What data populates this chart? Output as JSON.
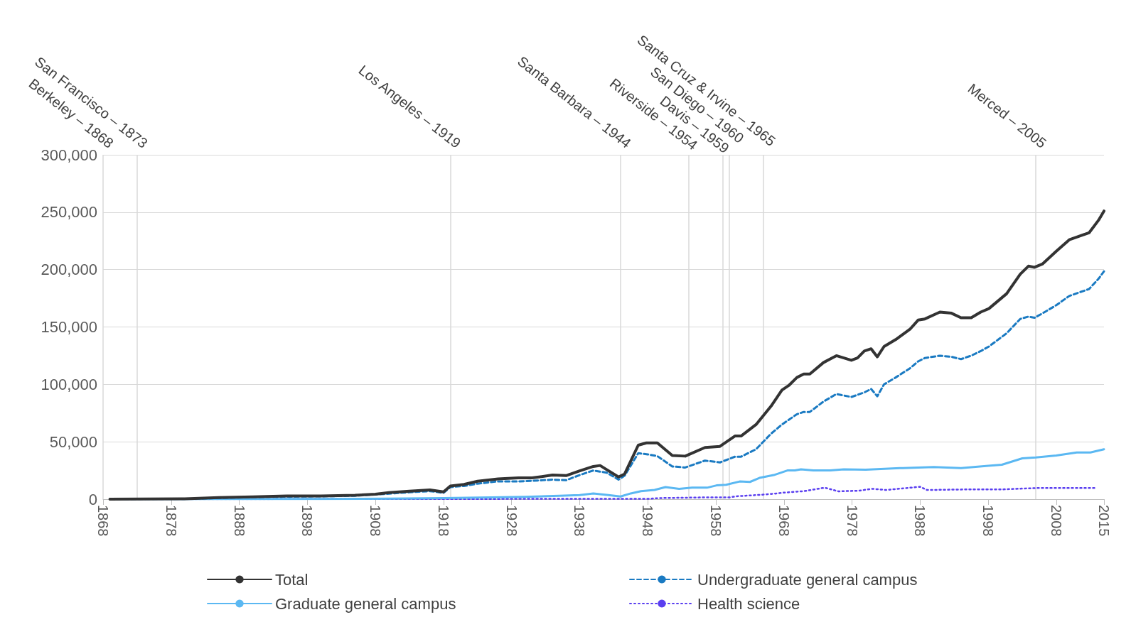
{
  "chart_data": {
    "type": "line",
    "xlim": [
      1868,
      2015
    ],
    "xticks": [
      1868,
      1878,
      1888,
      1898,
      1908,
      1918,
      1928,
      1938,
      1948,
      1958,
      1968,
      1978,
      1988,
      1998,
      2008,
      2015
    ],
    "ylim": [
      0,
      300000
    ],
    "yticks": [
      {
        "value": 0,
        "label": "0"
      },
      {
        "value": 50000,
        "label": "50,000"
      },
      {
        "value": 100000,
        "label": "100,000"
      },
      {
        "value": 150000,
        "label": "150,000"
      },
      {
        "value": 200000,
        "label": "200,000"
      },
      {
        "value": 250000,
        "label": "250,000"
      },
      {
        "value": 300000,
        "label": "300,000"
      }
    ],
    "grid": "y",
    "legend": "bottom",
    "marker": "none",
    "ref_lines": [
      {
        "axis": "x",
        "value": 1868,
        "label": "Berkeley – 1868",
        "color": "#d9d9d9"
      },
      {
        "axis": "x",
        "value": 1873,
        "label": "San Francisco – 1873",
        "color": "#d9d9d9"
      },
      {
        "axis": "x",
        "value": 1919,
        "label": "Los Angeles – 1919",
        "color": "#d9d9d9"
      },
      {
        "axis": "x",
        "value": 1944,
        "label": "Santa Barbara – 1944",
        "color": "#d9d9d9"
      },
      {
        "axis": "x",
        "value": 1954,
        "label": "Riverside – 1954",
        "color": "#d9d9d9"
      },
      {
        "axis": "x",
        "value": 1959,
        "label": "Davis – 1959",
        "color": "#d9d9d9"
      },
      {
        "axis": "x",
        "value": 1960,
        "label": "San Diego – 1960",
        "color": "#d9d9d9"
      },
      {
        "axis": "x",
        "value": 1965,
        "label": "Santa Cruz & Irvine – 1965",
        "color": "#d9d9d9"
      },
      {
        "axis": "x",
        "value": 2005,
        "label": "Merced – 2005",
        "color": "#d9d9d9"
      }
    ],
    "series": [
      {
        "name": "Total",
        "color": "#333333",
        "line_style": "solid",
        "x": [
          1869,
          1880,
          1885,
          1890,
          1895,
          1900,
          1905,
          1908,
          1910,
          1913,
          1916,
          1918,
          1919,
          1921,
          1923,
          1926,
          1929,
          1931,
          1934,
          1936,
          1938,
          1940,
          1941,
          1942,
          1943.7,
          1944.6,
          1946.6,
          1947.8,
          1949.4,
          1951.6,
          1953.5,
          1956.4,
          1958.6,
          1960.8,
          1961.7,
          1963.9,
          1966.1,
          1967.7,
          1968.7,
          1969.9,
          1970.9,
          1971.8,
          1973.8,
          1975.7,
          1977.9,
          1978.8,
          1979.8,
          1980.8,
          1981.7,
          1982.7,
          1984.4,
          1986.5,
          1987.7,
          1988.7,
          1990.9,
          1992.6,
          1994,
          1995.5,
          1996.9,
          1998.1,
          2000.7,
          2002.7,
          2003.9,
          2004.8,
          2006,
          2008,
          2009.9,
          2011.3,
          2012.8,
          2014.2,
          2015
        ],
        "values": [
          0,
          300,
          1400,
          2000,
          2800,
          2800,
          3400,
          4300,
          5700,
          7000,
          8000,
          6300,
          11400,
          12800,
          15600,
          17600,
          18500,
          18500,
          21000,
          20500,
          24700,
          28500,
          29300,
          25600,
          19300,
          22000,
          47000,
          49000,
          49000,
          38000,
          37500,
          45000,
          46000,
          55000,
          55000,
          65000,
          81000,
          95000,
          99000,
          106000,
          109000,
          109000,
          119000,
          125000,
          121000,
          123000,
          129000,
          131000,
          124000,
          133000,
          139000,
          148000,
          156000,
          157000,
          163000,
          162000,
          158000,
          158000,
          163000,
          166000,
          179000,
          196000,
          203000,
          202000,
          205000,
          216000,
          226000,
          229000,
          232000,
          243000,
          251000
        ]
      },
      {
        "name": "Undergraduate general campus",
        "color": "#1a7ac2",
        "line_style": "dashed",
        "x": [
          1869,
          1880,
          1890,
          1900,
          1905,
          1910,
          1913,
          1916,
          1918,
          1919,
          1921,
          1923,
          1926,
          1929,
          1931,
          1934,
          1936,
          1938,
          1940,
          1942,
          1943.7,
          1944.6,
          1946.6,
          1948,
          1949.4,
          1951.6,
          1953.5,
          1956.4,
          1958.6,
          1960.8,
          1961.7,
          1963.9,
          1966.1,
          1967.7,
          1969.9,
          1970.9,
          1971.8,
          1973.8,
          1975.7,
          1977.9,
          1979.8,
          1980.8,
          1981.7,
          1982.7,
          1984.4,
          1986.5,
          1987.7,
          1988.7,
          1990.9,
          1992.6,
          1994,
          1995.5,
          1996.9,
          1998.1,
          2000.7,
          2002.7,
          2003.9,
          2004.8,
          2006,
          2008,
          2009.9,
          2011.3,
          2012.8,
          2014.2,
          2015
        ],
        "values": [
          0,
          200,
          1800,
          2500,
          3000,
          4800,
          6000,
          7000,
          5500,
          10500,
          11500,
          13500,
          15500,
          15500,
          16000,
          17000,
          16500,
          21000,
          25000,
          23000,
          17000,
          20500,
          40000,
          39000,
          37500,
          28500,
          27600,
          33600,
          32000,
          37000,
          37000,
          43500,
          57000,
          65000,
          74000,
          76000,
          76000,
          85000,
          91600,
          89000,
          93000,
          96000,
          89600,
          100000,
          106000,
          114000,
          120000,
          123000,
          125000,
          124000,
          122000,
          125000,
          129000,
          133000,
          144500,
          157000,
          159000,
          158000,
          162000,
          169000,
          177000,
          180000,
          183000,
          192000,
          198500
        ]
      },
      {
        "name": "Graduate general campus",
        "color": "#5bb8f2",
        "line_style": "solid",
        "x": [
          1869,
          1900,
          1910,
          1918,
          1925,
          1930,
          1935,
          1938,
          1940,
          1942,
          1944,
          1945.5,
          1947,
          1949,
          1950.6,
          1952.6,
          1954.5,
          1956.7,
          1958.1,
          1959.5,
          1961.5,
          1963,
          1964.4,
          1966.5,
          1968.5,
          1969.6,
          1970.5,
          1972.3,
          1974.8,
          1976.8,
          1980,
          1985,
          1990,
          1994,
          1998,
          2000,
          2003,
          2005,
          2008,
          2011,
          2013,
          2015
        ],
        "values": [
          0,
          200,
          500,
          1000,
          1500,
          2000,
          3000,
          3500,
          5000,
          3700,
          2300,
          5000,
          7000,
          8000,
          10500,
          9000,
          10000,
          10000,
          12000,
          12500,
          15400,
          15000,
          18500,
          21000,
          25000,
          25000,
          26000,
          25000,
          25000,
          26000,
          25600,
          27000,
          28000,
          27000,
          29000,
          30000,
          35600,
          36400,
          38000,
          40700,
          40700,
          43500
        ]
      },
      {
        "name": "Health science",
        "color": "#5a3ff0",
        "line_style": "dotted",
        "x": [
          1869,
          1900,
          1940,
          1948,
          1950,
          1956,
          1960,
          1961,
          1965,
          1967,
          1968,
          1971,
          1974,
          1976,
          1979,
          1981,
          1983,
          1988,
          1989,
          1995,
          2000,
          2005,
          2010,
          2014
        ],
        "values": [
          0,
          100,
          300,
          300,
          1000,
          1500,
          1500,
          2500,
          4000,
          5000,
          5700,
          7000,
          10000,
          6800,
          7400,
          9000,
          8000,
          10800,
          8000,
          8500,
          8500,
          9700,
          9700,
          9700
        ]
      }
    ]
  }
}
